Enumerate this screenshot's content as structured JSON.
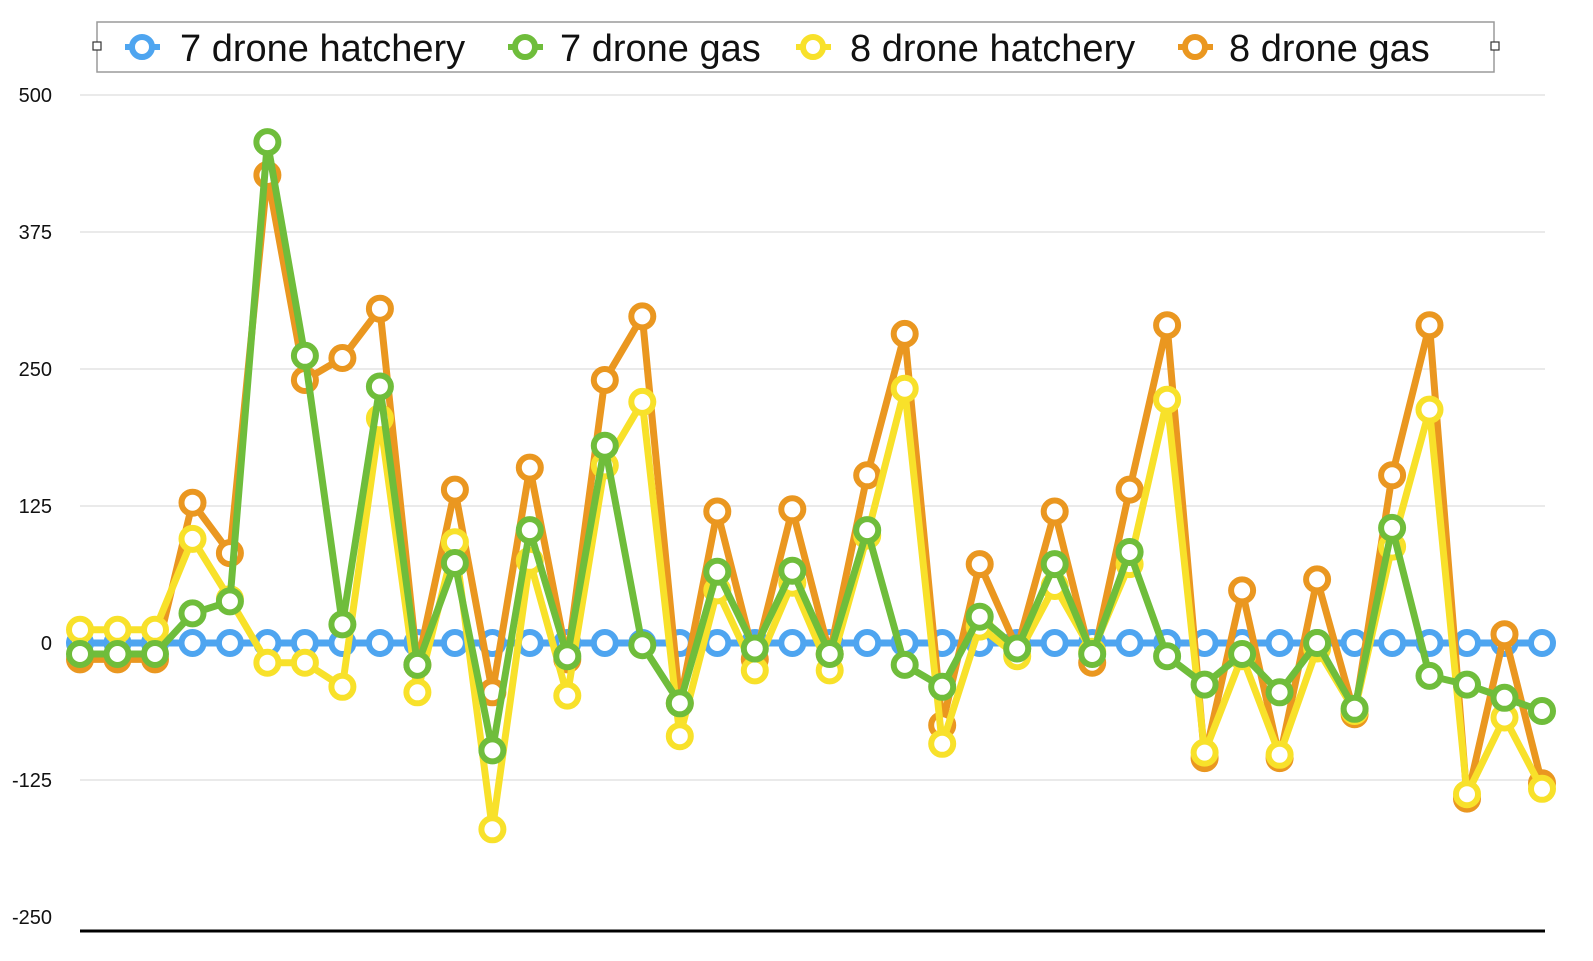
{
  "chart_data": {
    "type": "line",
    "title": "",
    "xlabel": "",
    "ylabel": "",
    "ylim": [
      -250,
      500
    ],
    "yticks": [
      500,
      375,
      250,
      125,
      0,
      -125,
      -250
    ],
    "grid": true,
    "legend_position": "top",
    "x": [
      1,
      2,
      3,
      4,
      5,
      6,
      7,
      8,
      9,
      10,
      11,
      12,
      13,
      14,
      15,
      16,
      17,
      18,
      19,
      20,
      21,
      22,
      23,
      24,
      25,
      26,
      27,
      28,
      29,
      30,
      31,
      32,
      33,
      34,
      35,
      36,
      37,
      38,
      39,
      40
    ],
    "series": [
      {
        "name": "7 drone hatchery",
        "color": "#4ea5f0",
        "values": [
          0,
          0,
          0,
          0,
          0,
          0,
          0,
          0,
          0,
          0,
          0,
          0,
          0,
          0,
          0,
          0,
          0,
          0,
          0,
          0,
          0,
          0,
          0,
          0,
          0,
          0,
          0,
          0,
          0,
          0,
          0,
          0,
          0,
          0,
          0,
          0,
          0,
          0,
          0,
          0
        ]
      },
      {
        "name": "8 drone gas",
        "color": "#ea9720",
        "values": [
          -15,
          -15,
          -15,
          128,
          82,
          427,
          240,
          260,
          305,
          -20,
          140,
          -45,
          160,
          -15,
          240,
          298,
          -55,
          120,
          -15,
          122,
          -10,
          153,
          282,
          -75,
          72,
          -5,
          120,
          -18,
          140,
          290,
          -105,
          48,
          -105,
          58,
          -65,
          153,
          290,
          -142,
          8,
          -128
        ]
      },
      {
        "name": "8 drone hatchery",
        "color": "#f8e12a",
        "values": [
          12,
          12,
          12,
          95,
          40,
          -18,
          -18,
          -40,
          205,
          -45,
          92,
          -170,
          75,
          -48,
          162,
          220,
          -85,
          48,
          -25,
          55,
          -25,
          98,
          232,
          -92,
          15,
          -12,
          52,
          -8,
          72,
          222,
          -100,
          -12,
          -102,
          -5,
          -62,
          88,
          213,
          -138,
          -68,
          -133
        ]
      },
      {
        "name": "7 drone gas",
        "color": "#6fbd3b",
        "values": [
          -10,
          -10,
          -10,
          27,
          38,
          457,
          262,
          17,
          234,
          -20,
          73,
          -98,
          103,
          -12,
          180,
          -2,
          -55,
          65,
          -5,
          66,
          -10,
          103,
          -20,
          -40,
          24,
          -5,
          72,
          -10,
          83,
          -12,
          -38,
          -10,
          -45,
          0,
          -60,
          105,
          -30,
          -38,
          -50,
          -62
        ]
      }
    ]
  },
  "legend": {
    "items": [
      {
        "label": "7 drone hatchery",
        "color": "#4ea5f0"
      },
      {
        "label": "7 drone gas",
        "color": "#6fbd3b"
      },
      {
        "label": "8 drone hatchery",
        "color": "#f8e12a"
      },
      {
        "label": "8 drone gas",
        "color": "#ea9720"
      }
    ]
  }
}
